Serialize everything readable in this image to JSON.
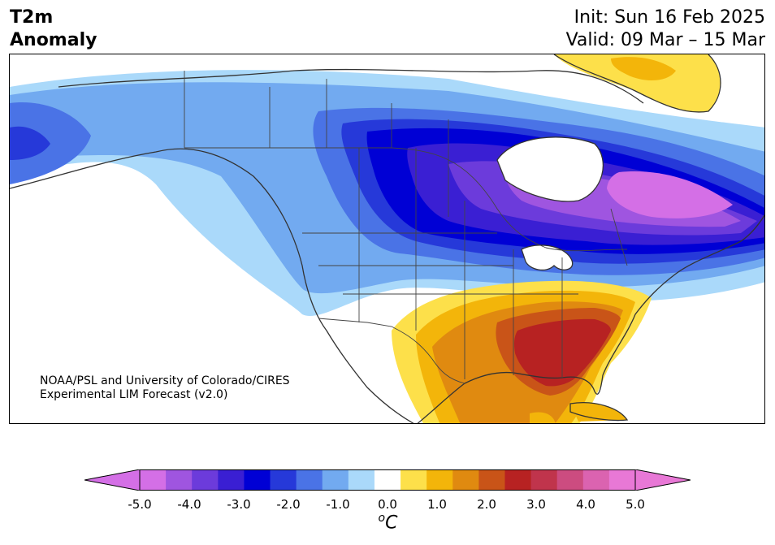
{
  "title": {
    "left_line1": "T2m",
    "left_line2": "Anomaly",
    "init": "Init: Sun 16 Feb 2025",
    "valid": "Valid: 09 Mar – 15 Mar"
  },
  "credit": {
    "line1": "NOAA/PSL and University of Colorado/CIRES",
    "line2": "Experimental LIM Forecast (v2.0)"
  },
  "colorbar": {
    "unit_symbol": "o",
    "unit_letter": "C",
    "tick_labels": [
      "-5.0",
      "-4.0",
      "-3.0",
      "-2.0",
      "-1.0",
      "0.0",
      "1.0",
      "2.0",
      "3.0",
      "4.0",
      "5.0"
    ],
    "levels": [
      -5.0,
      -4.5,
      -4.0,
      -3.5,
      -3.0,
      -2.5,
      -2.0,
      -1.5,
      -1.0,
      -0.5,
      0.5,
      1.0,
      1.5,
      2.0,
      2.5,
      3.0,
      3.5,
      4.0,
      4.5,
      5.0
    ],
    "colors": [
      "#d46fe6",
      "#9f55e0",
      "#6c3bdb",
      "#3a1fd3",
      "#0000d5",
      "#2639d9",
      "#4a73e6",
      "#72aaf0",
      "#aad9fa",
      "#ffffff",
      "#fde04a",
      "#f3b50a",
      "#e08a10",
      "#c95418",
      "#b72222",
      "#c0344c",
      "#cc4c80",
      "#db63b0",
      "#e878d6"
    ],
    "under_color": "#d46fe6",
    "over_color": "#e878d6"
  },
  "map": {
    "background": "#ffffff",
    "coastline_color": "#333333",
    "border_color": "#444444"
  }
}
